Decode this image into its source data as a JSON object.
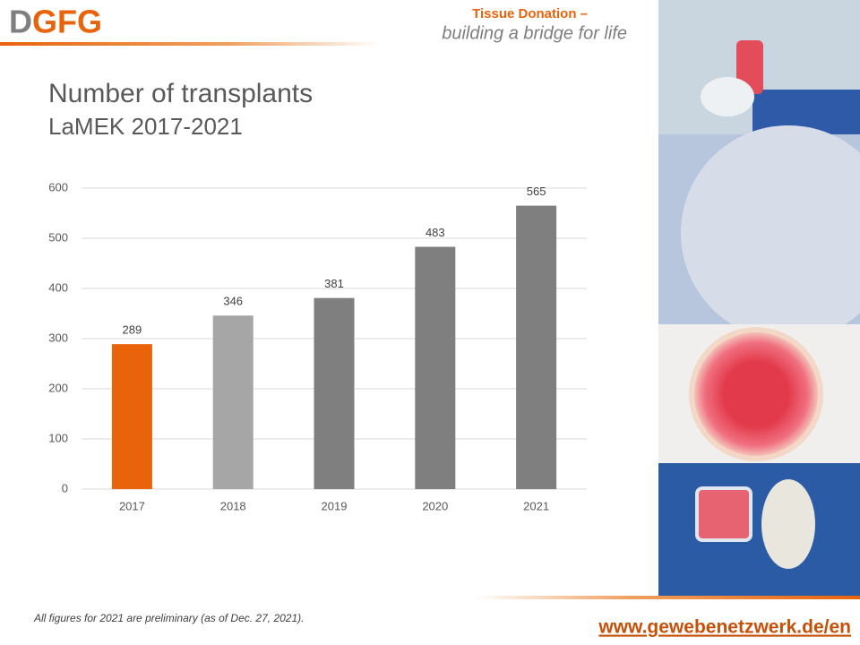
{
  "header": {
    "logo": "DGFG",
    "tagline_title": "Tissue Donation –",
    "tagline": "building a bridge for life"
  },
  "chart_data": {
    "type": "bar",
    "title": "Number of transplants",
    "subtitle": "LaMEK 2017-2021",
    "categories": [
      "2017",
      "2018",
      "2019",
      "2020",
      "2021"
    ],
    "values": [
      289,
      346,
      381,
      483,
      565
    ],
    "colors": [
      "#e8630a",
      "#a6a6a6",
      "#7f7f7f",
      "#7f7f7f",
      "#7f7f7f"
    ],
    "ylim": [
      0,
      600
    ],
    "yticks": [
      0,
      100,
      200,
      300,
      400,
      500,
      600
    ],
    "grid": true
  },
  "footer": {
    "note": "All figures for 2021 are preliminary (as of Dec. 27, 2021).",
    "url": "www.gewebenetzwerk.de/en"
  }
}
